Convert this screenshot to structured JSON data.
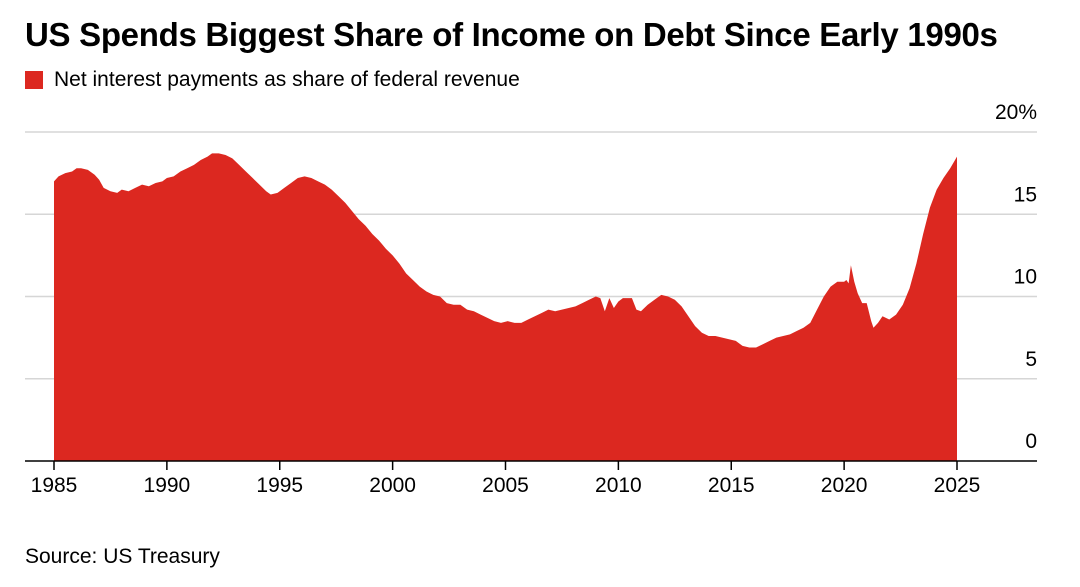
{
  "title": "US Spends Biggest Share of Income on Debt Since Early 1990s",
  "source": "Source: US Treasury",
  "colors": {
    "series": "#dc2820",
    "grid": "#d6d6d6",
    "axis": "#000000"
  },
  "chart_data": {
    "type": "area",
    "title": "US Spends Biggest Share of Income on Debt Since Early 1990s",
    "xlabel": "",
    "ylabel": "",
    "xlim": [
      1985,
      2028.6
    ],
    "ylim": [
      0,
      20
    ],
    "x_ticks": [
      1985,
      1990,
      1995,
      2000,
      2005,
      2010,
      2015,
      2020,
      2025
    ],
    "y_ticks": [
      0,
      5,
      10,
      15,
      20
    ],
    "y_tick_labels": [
      "0",
      "5",
      "10",
      "15",
      "20%"
    ],
    "y_axis_position": "right",
    "grid": true,
    "legend": "top-left",
    "series": [
      {
        "name": "Net interest payments as share of federal revenue",
        "color": "#dc2820",
        "points": [
          [
            1985.0,
            17.0
          ],
          [
            1985.2,
            17.3
          ],
          [
            1985.5,
            17.5
          ],
          [
            1985.8,
            17.6
          ],
          [
            1986.0,
            17.8
          ],
          [
            1986.2,
            17.8
          ],
          [
            1986.5,
            17.7
          ],
          [
            1986.8,
            17.4
          ],
          [
            1987.0,
            17.1
          ],
          [
            1987.2,
            16.6
          ],
          [
            1987.5,
            16.4
          ],
          [
            1987.8,
            16.3
          ],
          [
            1988.0,
            16.5
          ],
          [
            1988.3,
            16.4
          ],
          [
            1988.6,
            16.6
          ],
          [
            1988.9,
            16.8
          ],
          [
            1989.2,
            16.7
          ],
          [
            1989.5,
            16.9
          ],
          [
            1989.8,
            17.0
          ],
          [
            1990.0,
            17.2
          ],
          [
            1990.3,
            17.3
          ],
          [
            1990.6,
            17.6
          ],
          [
            1990.9,
            17.8
          ],
          [
            1991.2,
            18.0
          ],
          [
            1991.5,
            18.3
          ],
          [
            1991.8,
            18.5
          ],
          [
            1992.0,
            18.7
          ],
          [
            1992.3,
            18.7
          ],
          [
            1992.6,
            18.6
          ],
          [
            1992.9,
            18.4
          ],
          [
            1993.2,
            18.0
          ],
          [
            1993.5,
            17.6
          ],
          [
            1993.8,
            17.2
          ],
          [
            1994.1,
            16.8
          ],
          [
            1994.4,
            16.4
          ],
          [
            1994.6,
            16.2
          ],
          [
            1994.9,
            16.3
          ],
          [
            1995.2,
            16.6
          ],
          [
            1995.5,
            16.9
          ],
          [
            1995.8,
            17.2
          ],
          [
            1996.1,
            17.3
          ],
          [
            1996.4,
            17.2
          ],
          [
            1996.7,
            17.0
          ],
          [
            1997.0,
            16.8
          ],
          [
            1997.3,
            16.5
          ],
          [
            1997.6,
            16.1
          ],
          [
            1997.9,
            15.7
          ],
          [
            1998.2,
            15.2
          ],
          [
            1998.5,
            14.7
          ],
          [
            1998.8,
            14.3
          ],
          [
            1999.1,
            13.8
          ],
          [
            1999.4,
            13.4
          ],
          [
            1999.7,
            12.9
          ],
          [
            2000.0,
            12.5
          ],
          [
            2000.3,
            12.0
          ],
          [
            2000.6,
            11.4
          ],
          [
            2000.9,
            11.0
          ],
          [
            2001.2,
            10.6
          ],
          [
            2001.5,
            10.3
          ],
          [
            2001.8,
            10.1
          ],
          [
            2002.1,
            10.0
          ],
          [
            2002.4,
            9.6
          ],
          [
            2002.7,
            9.5
          ],
          [
            2003.0,
            9.5
          ],
          [
            2003.3,
            9.2
          ],
          [
            2003.6,
            9.1
          ],
          [
            2003.9,
            8.9
          ],
          [
            2004.2,
            8.7
          ],
          [
            2004.5,
            8.5
          ],
          [
            2004.8,
            8.4
          ],
          [
            2005.1,
            8.5
          ],
          [
            2005.4,
            8.4
          ],
          [
            2005.7,
            8.4
          ],
          [
            2006.0,
            8.6
          ],
          [
            2006.3,
            8.8
          ],
          [
            2006.6,
            9.0
          ],
          [
            2006.9,
            9.2
          ],
          [
            2007.2,
            9.1
          ],
          [
            2007.5,
            9.2
          ],
          [
            2007.8,
            9.3
          ],
          [
            2008.1,
            9.4
          ],
          [
            2008.4,
            9.6
          ],
          [
            2008.7,
            9.8
          ],
          [
            2009.0,
            10.0
          ],
          [
            2009.2,
            9.9
          ],
          [
            2009.4,
            9.1
          ],
          [
            2009.6,
            9.9
          ],
          [
            2009.8,
            9.3
          ],
          [
            2010.0,
            9.7
          ],
          [
            2010.2,
            9.9
          ],
          [
            2010.4,
            9.9
          ],
          [
            2010.6,
            9.9
          ],
          [
            2010.8,
            9.2
          ],
          [
            2011.0,
            9.1
          ],
          [
            2011.3,
            9.5
          ],
          [
            2011.6,
            9.8
          ],
          [
            2011.9,
            10.1
          ],
          [
            2012.2,
            10.0
          ],
          [
            2012.5,
            9.8
          ],
          [
            2012.8,
            9.4
          ],
          [
            2013.1,
            8.8
          ],
          [
            2013.4,
            8.2
          ],
          [
            2013.7,
            7.8
          ],
          [
            2014.0,
            7.6
          ],
          [
            2014.3,
            7.6
          ],
          [
            2014.6,
            7.5
          ],
          [
            2014.9,
            7.4
          ],
          [
            2015.2,
            7.3
          ],
          [
            2015.5,
            7.0
          ],
          [
            2015.8,
            6.9
          ],
          [
            2016.1,
            6.9
          ],
          [
            2016.4,
            7.1
          ],
          [
            2016.7,
            7.3
          ],
          [
            2017.0,
            7.5
          ],
          [
            2017.3,
            7.6
          ],
          [
            2017.6,
            7.7
          ],
          [
            2017.9,
            7.9
          ],
          [
            2018.2,
            8.1
          ],
          [
            2018.5,
            8.4
          ],
          [
            2018.8,
            9.2
          ],
          [
            2019.1,
            10.0
          ],
          [
            2019.4,
            10.6
          ],
          [
            2019.7,
            10.9
          ],
          [
            2020.0,
            10.9
          ],
          [
            2020.1,
            11.0
          ],
          [
            2020.2,
            10.8
          ],
          [
            2020.3,
            11.9
          ],
          [
            2020.45,
            10.9
          ],
          [
            2020.6,
            10.2
          ],
          [
            2020.8,
            9.6
          ],
          [
            2021.0,
            9.6
          ],
          [
            2021.2,
            8.5
          ],
          [
            2021.3,
            8.1
          ],
          [
            2021.5,
            8.4
          ],
          [
            2021.7,
            8.8
          ],
          [
            2022.0,
            8.6
          ],
          [
            2022.3,
            8.9
          ],
          [
            2022.6,
            9.5
          ],
          [
            2022.9,
            10.5
          ],
          [
            2023.2,
            12.0
          ],
          [
            2023.5,
            13.8
          ],
          [
            2023.8,
            15.4
          ],
          [
            2024.1,
            16.5
          ],
          [
            2024.4,
            17.2
          ],
          [
            2024.7,
            17.8
          ],
          [
            2025.0,
            18.5
          ]
        ]
      }
    ]
  }
}
